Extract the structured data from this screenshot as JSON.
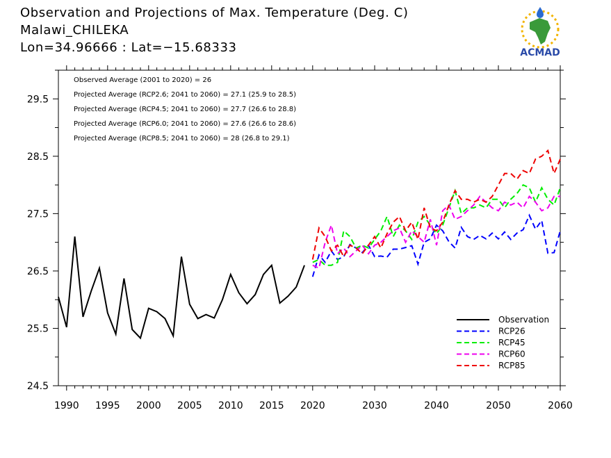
{
  "header": {
    "title_line1": "Observation and Projections of Max. Temperature (Deg. C)",
    "title_line2": "Malawi_CHILEKA",
    "title_line3": "Lon=34.96666 : Lat=−15.68333"
  },
  "logo": {
    "text": "ACMAD",
    "icon": "africa-map-logo"
  },
  "colors": {
    "Observation": "#000000",
    "RCP26": "#0000ff",
    "RCP45": "#00ee00",
    "RCP60": "#ee00ee",
    "RCP85": "#ee0000"
  },
  "chart_data": {
    "type": "line",
    "title": "Observation and Projections of Max. Temperature (Deg. C)",
    "xlim": [
      1989,
      2060
    ],
    "ylim": [
      24.5,
      30
    ],
    "x_tick_labels": [
      "1990",
      "1995",
      "2000",
      "2005",
      "2010",
      "2015",
      "2020",
      "2030",
      "2040",
      "2050",
      "2060"
    ],
    "y_tick_labels": [
      "24.5",
      "25.5",
      "26.5",
      "27.5",
      "28.5",
      "29.5"
    ],
    "annotations": [
      "Observed Average (2001 to 2020) = 26",
      "Projected Average (RCP2.6; 2041 to 2060) = 27.1 (25.9 to 28.5)",
      "Projected Average (RCP4.5; 2041 to 2060) = 27.7 (26.6 to 28.8)",
      "Projected Average (RCP6.0; 2041 to 2060) = 27.6 (26.6 to 28.6)",
      "Projected Average (RCP8.5; 2041 to 2060) = 28 (26.8 to 29.1)"
    ],
    "legend_position": "bottom-right",
    "series": [
      {
        "name": "Observation",
        "dash": "solid",
        "x": [
          1989,
          1990,
          1991,
          1992,
          1993,
          1994,
          1995,
          1996,
          1997,
          1998,
          1999,
          2000,
          2001,
          2002,
          2003,
          2004,
          2005,
          2006,
          2007,
          2008,
          2009,
          2010,
          2011,
          2012,
          2013,
          2014,
          2015,
          2016,
          2017,
          2018,
          2019
        ],
        "y": [
          26.05,
          25.52,
          27.1,
          25.7,
          26.15,
          26.55,
          25.77,
          25.4,
          26.37,
          25.48,
          25.33,
          25.85,
          25.79,
          25.67,
          25.37,
          26.75,
          25.92,
          25.67,
          25.74,
          25.68,
          26.0,
          26.44,
          26.12,
          25.93,
          26.09,
          26.44,
          26.6,
          25.94,
          26.06,
          26.22,
          26.6
        ]
      },
      {
        "name": "RCP26",
        "dash": "dashed",
        "x": [
          2020,
          2021,
          2022,
          2023,
          2024,
          2025,
          2026,
          2027,
          2028,
          2029,
          2030,
          2031,
          2032,
          2033,
          2034,
          2035,
          2036,
          2037,
          2038,
          2039,
          2040,
          2041,
          2042,
          2043,
          2044,
          2045,
          2046,
          2047,
          2048,
          2049,
          2050,
          2051,
          2052,
          2053,
          2054,
          2055,
          2056,
          2057,
          2058,
          2059,
          2060
        ],
        "y": [
          26.4,
          26.78,
          26.65,
          26.85,
          26.7,
          26.75,
          26.96,
          26.9,
          26.82,
          26.95,
          26.75,
          26.76,
          26.74,
          26.88,
          26.88,
          26.91,
          26.94,
          26.62,
          27.0,
          27.06,
          27.3,
          27.2,
          27.01,
          26.9,
          27.26,
          27.1,
          27.05,
          27.12,
          27.06,
          27.16,
          27.06,
          27.18,
          27.05,
          27.16,
          27.22,
          27.47,
          27.23,
          27.38,
          26.81,
          26.82,
          27.2
        ]
      },
      {
        "name": "RCP45",
        "dash": "dashed",
        "x": [
          2020,
          2021,
          2022,
          2023,
          2024,
          2025,
          2026,
          2027,
          2028,
          2029,
          2030,
          2031,
          2032,
          2033,
          2034,
          2035,
          2036,
          2037,
          2038,
          2039,
          2040,
          2041,
          2042,
          2043,
          2044,
          2045,
          2046,
          2047,
          2048,
          2049,
          2050,
          2051,
          2052,
          2053,
          2054,
          2055,
          2056,
          2057,
          2058,
          2059,
          2060
        ],
        "y": [
          26.65,
          26.7,
          26.6,
          26.6,
          26.65,
          27.2,
          27.1,
          26.9,
          26.95,
          26.9,
          27.05,
          27.2,
          27.45,
          27.1,
          27.3,
          27.2,
          27.05,
          27.35,
          27.45,
          27.3,
          27.15,
          27.3,
          27.6,
          27.9,
          27.5,
          27.6,
          27.6,
          27.65,
          27.6,
          27.75,
          27.75,
          27.6,
          27.75,
          27.85,
          28.0,
          27.95,
          27.7,
          27.95,
          27.75,
          27.65,
          27.95
        ]
      },
      {
        "name": "RCP60",
        "dash": "dashed",
        "x": [
          2020,
          2021,
          2022,
          2023,
          2024,
          2025,
          2026,
          2027,
          2028,
          2029,
          2030,
          2031,
          2032,
          2033,
          2034,
          2035,
          2036,
          2037,
          2038,
          2039,
          2040,
          2041,
          2042,
          2043,
          2044,
          2045,
          2046,
          2047,
          2048,
          2049,
          2050,
          2051,
          2052,
          2053,
          2054,
          2055,
          2056,
          2057,
          2058,
          2059,
          2060
        ],
        "y": [
          26.6,
          26.55,
          27.0,
          27.3,
          26.8,
          26.9,
          26.75,
          26.85,
          26.95,
          26.8,
          26.95,
          27.0,
          27.1,
          27.2,
          27.25,
          27.0,
          27.2,
          27.1,
          27.0,
          27.4,
          26.95,
          27.55,
          27.65,
          27.4,
          27.45,
          27.55,
          27.65,
          27.8,
          27.7,
          27.6,
          27.55,
          27.7,
          27.65,
          27.7,
          27.6,
          27.8,
          27.7,
          27.55,
          27.6,
          27.8,
          27.8
        ]
      },
      {
        "name": "RCP85",
        "dash": "dashed",
        "x": [
          2020,
          2021,
          2022,
          2023,
          2024,
          2025,
          2026,
          2027,
          2028,
          2029,
          2030,
          2031,
          2032,
          2033,
          2034,
          2035,
          2036,
          2037,
          2038,
          2039,
          2040,
          2041,
          2042,
          2043,
          2044,
          2045,
          2046,
          2047,
          2048,
          2049,
          2050,
          2051,
          2052,
          2053,
          2054,
          2055,
          2056,
          2057,
          2058,
          2059,
          2060
        ],
        "y": [
          26.7,
          27.25,
          27.1,
          26.85,
          26.95,
          26.75,
          26.95,
          26.9,
          26.8,
          26.95,
          27.1,
          26.9,
          27.15,
          27.35,
          27.45,
          27.2,
          27.35,
          27.05,
          27.6,
          27.25,
          27.2,
          27.35,
          27.65,
          27.9,
          27.75,
          27.75,
          27.7,
          27.75,
          27.7,
          27.8,
          28.0,
          28.2,
          28.2,
          28.1,
          28.25,
          28.2,
          28.45,
          28.5,
          28.6,
          28.2,
          28.45
        ]
      }
    ]
  }
}
